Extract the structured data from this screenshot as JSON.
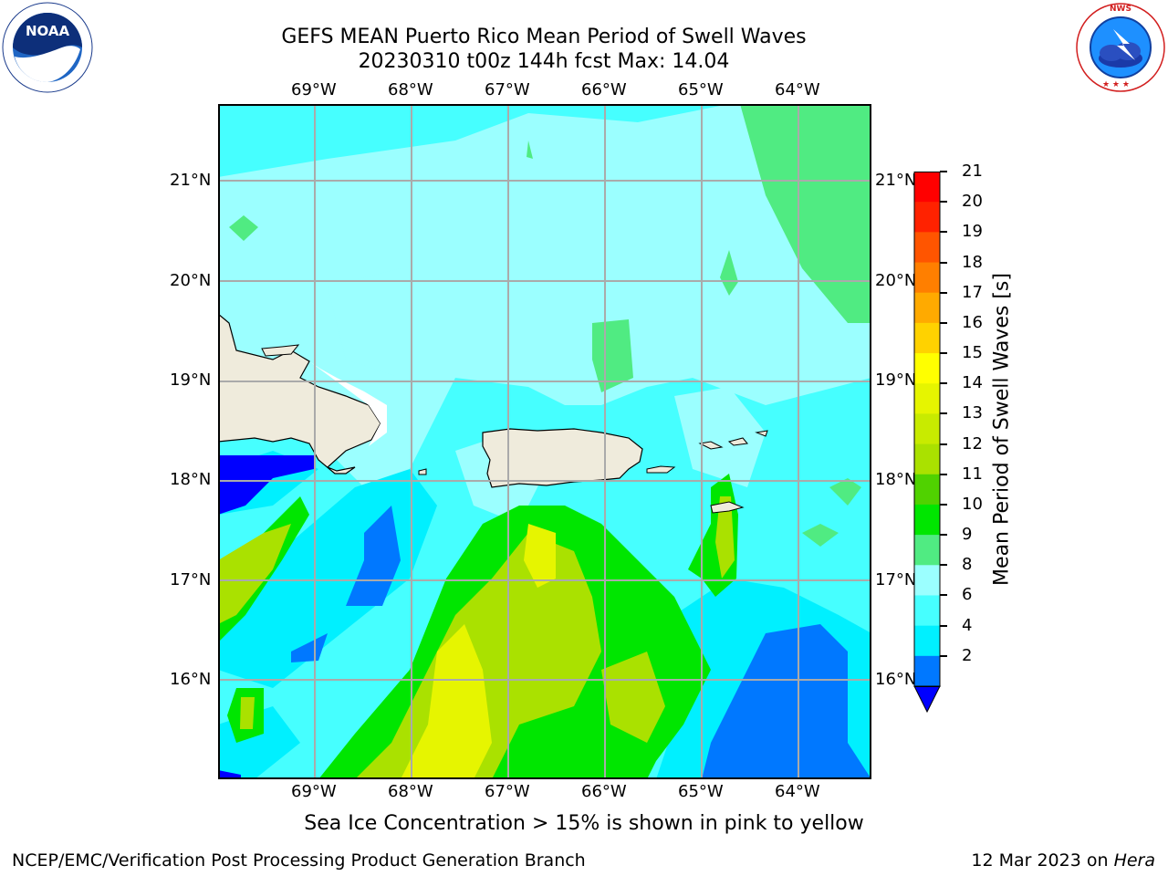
{
  "header": {
    "title_line1": "GEFS MEAN Puerto Rico Mean Period of Swell Waves",
    "title_line2": "20230310 t00z 144h fcst   Max: 14.04"
  },
  "logos": {
    "noaa_left": {
      "text": "NOAA",
      "ring_text": "NATIONAL OCEANIC AND ATMOSPHERIC ADMINISTRATION · U.S. DEPARTMENT OF COMMERCE"
    },
    "nws_right": {
      "ring_text": "NATIONAL WEATHER SERVICE"
    }
  },
  "map": {
    "lon_labels": [
      "69°W",
      "68°W",
      "67°W",
      "66°W",
      "65°W",
      "64°W"
    ],
    "lat_labels": [
      "21°N",
      "20°N",
      "19°N",
      "18°N",
      "17°N",
      "16°N"
    ]
  },
  "colorbar": {
    "label": "Mean Period of Swell Waves [s]",
    "ticks": [
      "21",
      "20",
      "19",
      "18",
      "17",
      "16",
      "15",
      "14",
      "13",
      "12",
      "11",
      "10",
      "9",
      "8",
      "6",
      "4",
      "2"
    ],
    "colors_top_to_bottom": [
      "#ff0000",
      "#ff2200",
      "#ff5500",
      "#ff7f00",
      "#ffaa00",
      "#ffd200",
      "#ffff00",
      "#e6f500",
      "#c8eb00",
      "#aae100",
      "#50d200",
      "#00e600",
      "#50eb82",
      "#9bffff",
      "#46ffff",
      "#00f0ff",
      "#0078ff"
    ],
    "underflow_color": "#0000ff"
  },
  "note": "Sea Ice Concentration > 15% is shown in pink to yellow",
  "footer": {
    "left": "NCEP/EMC/Verification Post Processing Product Generation Branch",
    "date": "12 Mar 2023 on ",
    "machine": "Hera"
  }
}
